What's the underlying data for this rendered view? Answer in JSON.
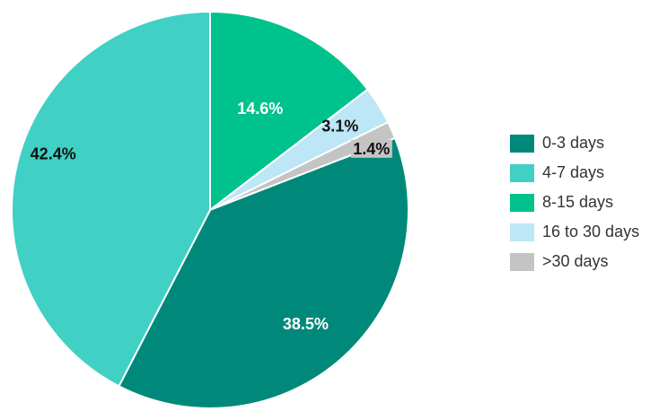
{
  "chart_data": {
    "type": "pie",
    "slices": [
      {
        "label": "0-3 days",
        "value": 38.5,
        "value_label": "38.5%",
        "color": "#00897B",
        "label_color": "#ffffff"
      },
      {
        "label": "4-7 days",
        "value": 42.4,
        "value_label": "42.4%",
        "color": "#40D0C4",
        "label_color": "#111111"
      },
      {
        "label": "8-15 days",
        "value": 14.6,
        "value_label": "14.6%",
        "color": "#00C28C",
        "label_color": "#ffffff"
      },
      {
        "label": "16 to 30 days",
        "value": 3.1,
        "value_label": "3.1%",
        "color": "#BDE6F6",
        "label_color": "#111111"
      },
      {
        "label": ">30 days",
        "value": 1.4,
        "value_label": "1.4%",
        "color": "#C4C4C4",
        "label_color": "#111111"
      }
    ],
    "legend_position": "right",
    "start_angle": "12 o'clock",
    "direction": "clockwise",
    "draw_order": [
      "8-15 days",
      "16 to 30 days",
      ">30 days",
      "0-3 days",
      "4-7 days"
    ]
  }
}
